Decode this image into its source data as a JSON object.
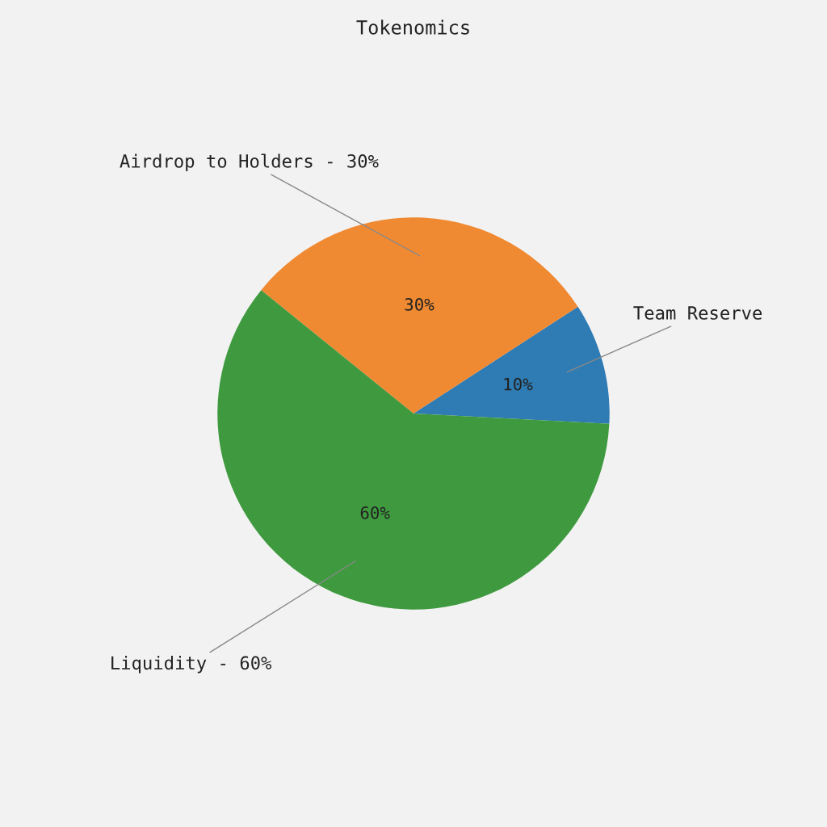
{
  "chart_data": {
    "type": "pie",
    "title": "Tokenomics",
    "categories": [
      "Team Reserve",
      "Airdrop to Holders - 30%",
      "Liquidity - 60%"
    ],
    "values": [
      10,
      30,
      60
    ],
    "colors": [
      "#2f7bb3",
      "#f08a32",
      "#3f9a3f"
    ],
    "value_labels": [
      "10%",
      "30%",
      "60%"
    ]
  }
}
